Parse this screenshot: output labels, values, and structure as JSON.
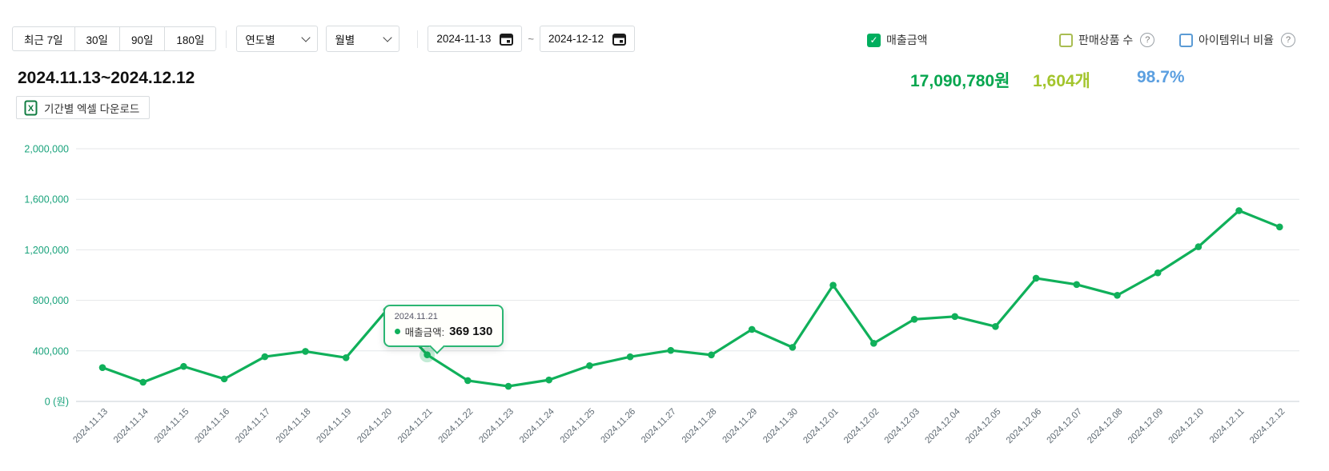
{
  "toolbar": {
    "ranges": [
      "최근 7일",
      "30일",
      "90일",
      "180일"
    ],
    "selects": [
      {
        "label": "연도별"
      },
      {
        "label": "월별"
      }
    ],
    "date_start": "2024-11-13",
    "date_separator": "~",
    "date_end": "2024-12-12"
  },
  "legend": [
    {
      "label": "매출금액",
      "checked": true,
      "color": "#00ae5e",
      "has_help": false
    },
    {
      "label": "판매상품 수",
      "checked": false,
      "color": "#a9bd52",
      "has_help": true
    },
    {
      "label": "아이템위너 비율",
      "checked": false,
      "color": "#5b9bd5",
      "has_help": true
    }
  ],
  "help_glyph": "?",
  "check_glyph": "✓",
  "summary": {
    "title": "2024.11.13~2024.12.12",
    "total_sales": "17,090,780원",
    "total_sales_color": "#07a64f",
    "items_count": "1,604개",
    "items_count_color": "#a3c52d",
    "itemwinner_ratio": "98.7%",
    "itemwinner_ratio_color": "#5b9fe0"
  },
  "excel_button": "기간별 엑셀 다운로드",
  "tooltip": {
    "date": "2024.11.21",
    "label": "매출금액:",
    "value": "369 130",
    "point_index": 8
  },
  "chart_data": {
    "type": "line",
    "series_name": "매출금액",
    "x": [
      "2024.11.13",
      "2024.11.14",
      "2024.11.15",
      "2024.11.16",
      "2024.11.17",
      "2024.11.18",
      "2024.11.19",
      "2024.11.20",
      "2024.11.21",
      "2024.11.22",
      "2024.11.23",
      "2024.11.24",
      "2024.11.25",
      "2024.11.26",
      "2024.11.27",
      "2024.11.28",
      "2024.11.29",
      "2024.11.30",
      "2024.12.01",
      "2024.12.02",
      "2024.12.03",
      "2024.12.04",
      "2024.12.05",
      "2024.12.06",
      "2024.12.07",
      "2024.12.08",
      "2024.12.09",
      "2024.12.10",
      "2024.12.11",
      "2024.12.12"
    ],
    "values": [
      268000,
      152000,
      277000,
      178000,
      354000,
      396000,
      346000,
      722000,
      369130,
      165000,
      120000,
      170000,
      283000,
      353000,
      404000,
      368000,
      570000,
      428000,
      920000,
      460000,
      650000,
      672000,
      593000,
      975000,
      925000,
      840000,
      1018000,
      1224000,
      1510000,
      1381000
    ],
    "ylim": [
      0,
      2000000
    ],
    "ytick_step": 400000,
    "ytick_labels": [
      "0 (원)",
      "400,000",
      "800,000",
      "1,200,000",
      "1,600,000",
      "2,000,000"
    ],
    "grid": true,
    "legend_position": "top-right",
    "colors": {
      "line": "#10b05a",
      "point": "#10b05a",
      "y_tick_label": "#1aa37c",
      "x_tick_label": "#5f6a73",
      "gridline": "#e4e7ea",
      "zero_line": "#c9cfd4"
    }
  }
}
